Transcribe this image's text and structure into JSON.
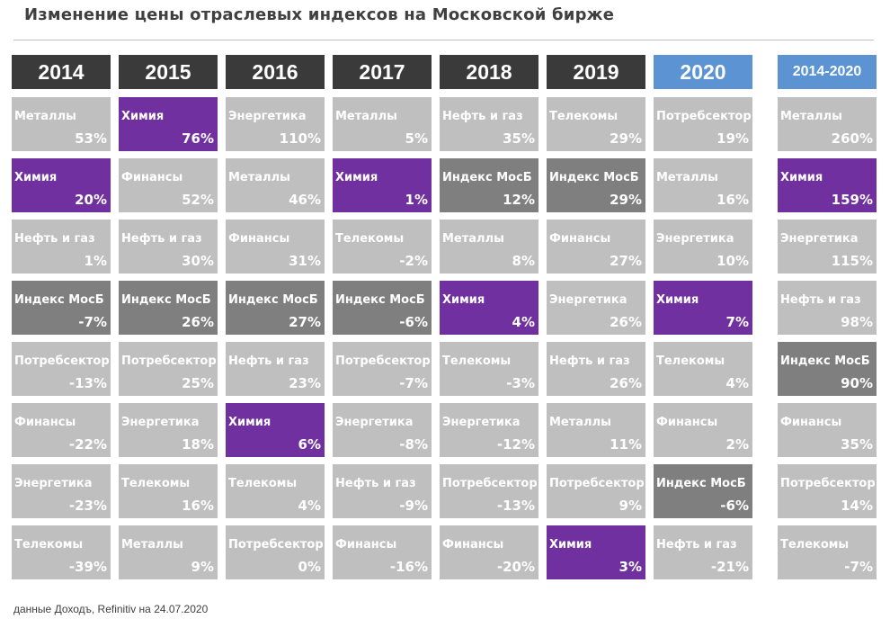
{
  "title": "Изменение цены отраслевых индексов на Московской бирже",
  "source": "данные Доходъ, Refinitiv на 24.07.2020",
  "colors": {
    "default": "#bfbfbf",
    "chemistry": "#7030a0",
    "index": "#7f7f7f",
    "header_dark": "#3a3a3a",
    "header_blue": "#5b93d3"
  },
  "chart_data": {
    "type": "table",
    "title": "Изменение цены отраслевых индексов на Московской бирже",
    "columns": [
      {
        "year": "2014",
        "style": "dark",
        "entries": [
          {
            "sector": "Металлы",
            "value": "53%",
            "kind": "default"
          },
          {
            "sector": "Химия",
            "value": "20%",
            "kind": "chem"
          },
          {
            "sector": "Нефть и газ",
            "value": "1%",
            "kind": "default"
          },
          {
            "sector": "Индекс МосБ",
            "value": "-7%",
            "kind": "index"
          },
          {
            "sector": "Потребсектор",
            "value": "-13%",
            "kind": "default"
          },
          {
            "sector": "Финансы",
            "value": "-22%",
            "kind": "default"
          },
          {
            "sector": "Энергетика",
            "value": "-23%",
            "kind": "default"
          },
          {
            "sector": "Телекомы",
            "value": "-39%",
            "kind": "default"
          }
        ]
      },
      {
        "year": "2015",
        "style": "dark",
        "entries": [
          {
            "sector": "Химия",
            "value": "76%",
            "kind": "chem"
          },
          {
            "sector": "Финансы",
            "value": "52%",
            "kind": "default"
          },
          {
            "sector": "Нефть и газ",
            "value": "30%",
            "kind": "default"
          },
          {
            "sector": "Индекс МосБ",
            "value": "26%",
            "kind": "index"
          },
          {
            "sector": "Потребсектор",
            "value": "25%",
            "kind": "default"
          },
          {
            "sector": "Энергетика",
            "value": "18%",
            "kind": "default"
          },
          {
            "sector": "Телекомы",
            "value": "16%",
            "kind": "default"
          },
          {
            "sector": "Металлы",
            "value": "9%",
            "kind": "default"
          }
        ]
      },
      {
        "year": "2016",
        "style": "dark",
        "entries": [
          {
            "sector": "Энергетика",
            "value": "110%",
            "kind": "default"
          },
          {
            "sector": "Металлы",
            "value": "46%",
            "kind": "default"
          },
          {
            "sector": "Финансы",
            "value": "31%",
            "kind": "default"
          },
          {
            "sector": "Индекс МосБ",
            "value": "27%",
            "kind": "index"
          },
          {
            "sector": "Нефть и газ",
            "value": "23%",
            "kind": "default"
          },
          {
            "sector": "Химия",
            "value": "6%",
            "kind": "chem"
          },
          {
            "sector": "Телекомы",
            "value": "4%",
            "kind": "default"
          },
          {
            "sector": "Потребсектор",
            "value": "0%",
            "kind": "default"
          }
        ]
      },
      {
        "year": "2017",
        "style": "dark",
        "entries": [
          {
            "sector": "Металлы",
            "value": "5%",
            "kind": "default"
          },
          {
            "sector": "Химия",
            "value": "1%",
            "kind": "chem"
          },
          {
            "sector": "Телекомы",
            "value": "-2%",
            "kind": "default"
          },
          {
            "sector": "Индекс МосБ",
            "value": "-6%",
            "kind": "index"
          },
          {
            "sector": "Потребсектор",
            "value": "-7%",
            "kind": "default"
          },
          {
            "sector": "Энергетика",
            "value": "-8%",
            "kind": "default"
          },
          {
            "sector": "Нефть и газ",
            "value": "-9%",
            "kind": "default"
          },
          {
            "sector": "Финансы",
            "value": "-16%",
            "kind": "default"
          }
        ]
      },
      {
        "year": "2018",
        "style": "dark",
        "entries": [
          {
            "sector": "Нефть и газ",
            "value": "35%",
            "kind": "default"
          },
          {
            "sector": "Индекс МосБ",
            "value": "12%",
            "kind": "index"
          },
          {
            "sector": "Металлы",
            "value": "8%",
            "kind": "default"
          },
          {
            "sector": "Химия",
            "value": "4%",
            "kind": "chem"
          },
          {
            "sector": "Телекомы",
            "value": "-3%",
            "kind": "default"
          },
          {
            "sector": "Энергетика",
            "value": "-12%",
            "kind": "default"
          },
          {
            "sector": "Потребсектор",
            "value": "-13%",
            "kind": "default"
          },
          {
            "sector": "Финансы",
            "value": "-20%",
            "kind": "default"
          }
        ]
      },
      {
        "year": "2019",
        "style": "dark",
        "entries": [
          {
            "sector": "Телекомы",
            "value": "29%",
            "kind": "default"
          },
          {
            "sector": "Индекс МосБ",
            "value": "29%",
            "kind": "index"
          },
          {
            "sector": "Финансы",
            "value": "27%",
            "kind": "default"
          },
          {
            "sector": "Энергетика",
            "value": "26%",
            "kind": "default"
          },
          {
            "sector": "Нефть и газ",
            "value": "26%",
            "kind": "default"
          },
          {
            "sector": "Металлы",
            "value": "11%",
            "kind": "default"
          },
          {
            "sector": "Потребсектор",
            "value": "9%",
            "kind": "default"
          },
          {
            "sector": "Химия",
            "value": "3%",
            "kind": "chem"
          }
        ]
      },
      {
        "year": "2020",
        "style": "current",
        "entries": [
          {
            "sector": "Потребсектор",
            "value": "19%",
            "kind": "default"
          },
          {
            "sector": "Металлы",
            "value": "16%",
            "kind": "default"
          },
          {
            "sector": "Энергетика",
            "value": "10%",
            "kind": "default"
          },
          {
            "sector": "Химия",
            "value": "7%",
            "kind": "chem"
          },
          {
            "sector": "Телекомы",
            "value": "4%",
            "kind": "default"
          },
          {
            "sector": "Финансы",
            "value": "2%",
            "kind": "default"
          },
          {
            "sector": "Индекс МосБ",
            "value": "-6%",
            "kind": "index"
          },
          {
            "sector": "Нефть и газ",
            "value": "-21%",
            "kind": "default"
          }
        ]
      },
      {
        "year": "2014-2020",
        "style": "range",
        "entries": [
          {
            "sector": "Металлы",
            "value": "260%",
            "kind": "default"
          },
          {
            "sector": "Химия",
            "value": "159%",
            "kind": "chem"
          },
          {
            "sector": "Энергетика",
            "value": "115%",
            "kind": "default"
          },
          {
            "sector": "Нефть и газ",
            "value": "98%",
            "kind": "default"
          },
          {
            "sector": "Индекс МосБ",
            "value": "90%",
            "kind": "index"
          },
          {
            "sector": "Финансы",
            "value": "35%",
            "kind": "default"
          },
          {
            "sector": "Потребсектор",
            "value": "14%",
            "kind": "default"
          },
          {
            "sector": "Телекомы",
            "value": "-7%",
            "kind": "default"
          }
        ]
      }
    ]
  }
}
